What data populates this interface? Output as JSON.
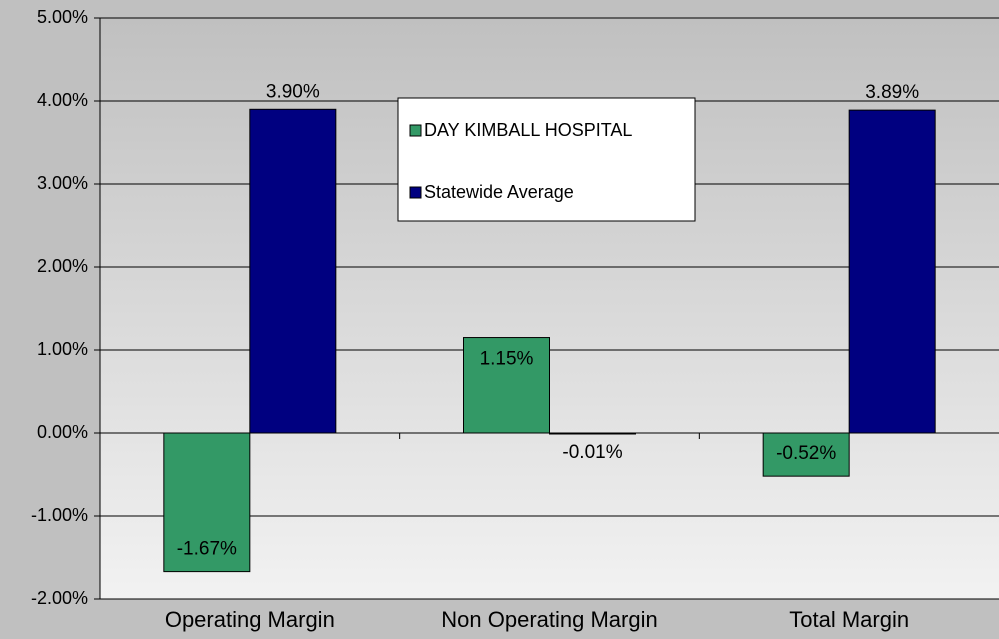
{
  "chart_data": {
    "type": "bar",
    "categories": [
      "Operating Margin",
      "Non Operating Margin",
      "Total Margin"
    ],
    "series": [
      {
        "name": "DAY KIMBALL HOSPITAL",
        "color": "#339966",
        "values": [
          -1.67,
          1.15,
          -0.52
        ],
        "value_labels": [
          "-1.67%",
          "1.15%",
          "-0.52%"
        ]
      },
      {
        "name": "Statewide Average",
        "color": "#000080",
        "values": [
          3.9,
          -0.01,
          3.89
        ],
        "value_labels": [
          "3.90%",
          "-0.01%",
          "3.89%"
        ]
      }
    ],
    "ylim": [
      -2,
      5
    ],
    "yticks": [
      {
        "value": -2,
        "label": "-2.00%"
      },
      {
        "value": -1,
        "label": "-1.00%"
      },
      {
        "value": 0,
        "label": "0.00%"
      },
      {
        "value": 1,
        "label": "1.00%"
      },
      {
        "value": 2,
        "label": "2.00%"
      },
      {
        "value": 3,
        "label": "3.00%"
      },
      {
        "value": 4,
        "label": "4.00%"
      },
      {
        "value": 5,
        "label": "5.00%"
      }
    ],
    "grid": true
  }
}
